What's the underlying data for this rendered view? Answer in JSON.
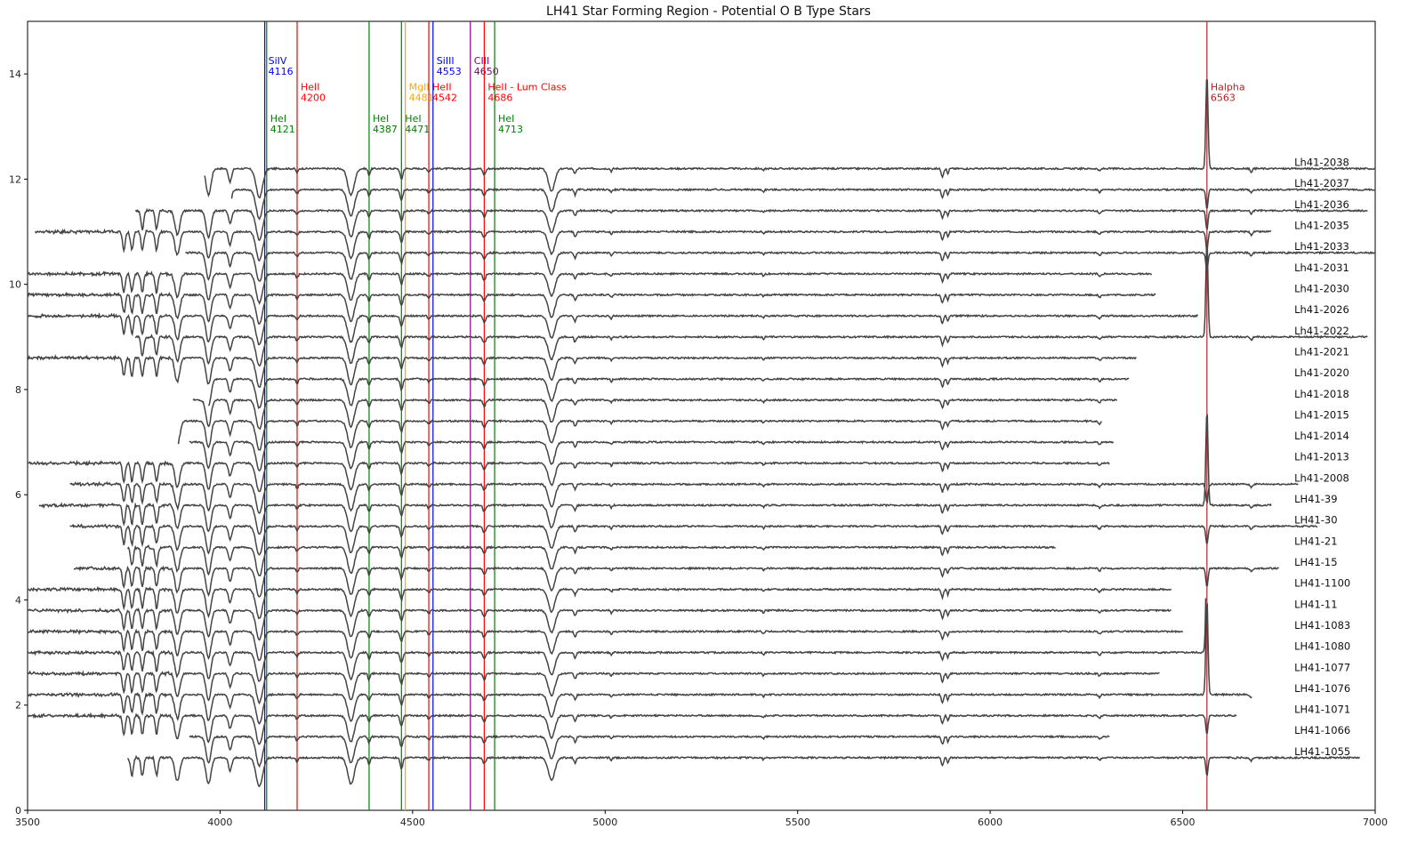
{
  "chart_data": {
    "type": "line",
    "title": "LH41 Star Forming Region - Potential O B Type Stars",
    "xlabel": "",
    "ylabel": "",
    "xlim": [
      3500,
      7000
    ],
    "ylim": [
      0,
      15
    ],
    "xticks": [
      3500,
      4000,
      4500,
      5000,
      5500,
      6000,
      6500,
      7000
    ],
    "yticks": [
      0,
      2,
      4,
      6,
      8,
      10,
      12,
      14
    ],
    "grid": false,
    "line_color": "#444444",
    "reference_lines": [
      {
        "x": 4116,
        "color": "#0000ff",
        "ion": "SiIV",
        "wavelength": "4116",
        "label_y": 14.0
      },
      {
        "x": 4121,
        "color": "#008000",
        "ion": "HeI",
        "wavelength": "4121",
        "label_y": 12.9
      },
      {
        "x": 4200,
        "color": "#ff0000",
        "ion": "HeII",
        "wavelength": "4200",
        "label_y": 13.5
      },
      {
        "x": 4387,
        "color": "#008000",
        "ion": "HeI",
        "wavelength": "4387",
        "label_y": 12.9
      },
      {
        "x": 4471,
        "color": "#008000",
        "ion": "HeI",
        "wavelength": "4471",
        "label_y": 12.9
      },
      {
        "x": 4481,
        "color": "#ffa500",
        "ion": "MgII",
        "wavelength": "4481",
        "label_y": 13.5
      },
      {
        "x": 4542,
        "color": "#ff0000",
        "ion": "HeII",
        "wavelength": "4542",
        "label_y": 13.5
      },
      {
        "x": 4553,
        "color": "#0000ff",
        "ion": "SiIII",
        "wavelength": "4553",
        "label_y": 14.0
      },
      {
        "x": 4650,
        "color": "#800080",
        "ion": "CIII",
        "wavelength": "4650",
        "label_y": 14.0
      },
      {
        "x": 4686,
        "color": "#ff0000",
        "ion": "HeII - Lum Class",
        "wavelength": "4686",
        "label_y": 13.5
      },
      {
        "x": 4713,
        "color": "#008000",
        "ion": "HeI",
        "wavelength": "4713",
        "label_y": 12.9
      },
      {
        "x": 6563,
        "color": "#b22222",
        "ion": "Halpha",
        "wavelength": "6563",
        "label_y": 13.5
      }
    ],
    "series": [
      {
        "name": "Lh41-2038",
        "offset": 12.2,
        "x_start": 3960,
        "x_end": 7000,
        "halpha": "emission"
      },
      {
        "name": "Lh41-2037",
        "offset": 11.8,
        "x_start": 4030,
        "x_end": 7000,
        "halpha": "absorption"
      },
      {
        "name": "Lh41-2036",
        "offset": 11.4,
        "x_start": 3780,
        "x_end": 6980,
        "halpha": "absorption"
      },
      {
        "name": "Lh41-2035",
        "offset": 11.0,
        "x_start": 3520,
        "x_end": 6730,
        "halpha": "absorption"
      },
      {
        "name": "Lh41-2033",
        "offset": 10.6,
        "x_start": 3910,
        "x_end": 7000,
        "halpha": "absorption"
      },
      {
        "name": "Lh41-2031",
        "offset": 10.2,
        "x_start": 3500,
        "x_end": 6420,
        "halpha": "absorption"
      },
      {
        "name": "Lh41-2030",
        "offset": 9.8,
        "x_start": 3500,
        "x_end": 6430,
        "halpha": "absorption"
      },
      {
        "name": "Lh41-2026",
        "offset": 9.4,
        "x_start": 3500,
        "x_end": 6540,
        "halpha": "absorption"
      },
      {
        "name": "Lh41-2022",
        "offset": 9.0,
        "x_start": 3780,
        "x_end": 6980,
        "halpha": "emission"
      },
      {
        "name": "Lh41-2021",
        "offset": 8.6,
        "x_start": 3500,
        "x_end": 6380,
        "halpha": "absorption"
      },
      {
        "name": "Lh41-2020",
        "offset": 8.2,
        "x_start": 3970,
        "x_end": 6360,
        "halpha": "absorption"
      },
      {
        "name": "Lh41-2018",
        "offset": 7.8,
        "x_start": 3930,
        "x_end": 6330,
        "halpha": "absorption"
      },
      {
        "name": "Lh41-2015",
        "offset": 7.4,
        "x_start": 3890,
        "x_end": 6290,
        "halpha": "absorption"
      },
      {
        "name": "Lh41-2014",
        "offset": 7.0,
        "x_start": 3920,
        "x_end": 6320,
        "halpha": "absorption"
      },
      {
        "name": "Lh41-2013",
        "offset": 6.6,
        "x_start": 3500,
        "x_end": 6310,
        "halpha": "absorption"
      },
      {
        "name": "Lh41-2008",
        "offset": 6.2,
        "x_start": 3610,
        "x_end": 6800,
        "halpha": "absorption"
      },
      {
        "name": "LH41-39",
        "offset": 5.8,
        "x_start": 3530,
        "x_end": 6730,
        "halpha": "emission"
      },
      {
        "name": "LH41-30",
        "offset": 5.4,
        "x_start": 3610,
        "x_end": 6850,
        "halpha": "absorption"
      },
      {
        "name": "LH41-21",
        "offset": 5.0,
        "x_start": 3760,
        "x_end": 6170,
        "halpha": "absorption"
      },
      {
        "name": "LH41-15",
        "offset": 4.6,
        "x_start": 3620,
        "x_end": 6750,
        "halpha": "absorption"
      },
      {
        "name": "LH41-1100",
        "offset": 4.2,
        "x_start": 3500,
        "x_end": 6470,
        "halpha": "emission"
      },
      {
        "name": "LH41-11",
        "offset": 3.8,
        "x_start": 3500,
        "x_end": 6470,
        "halpha": "absorption"
      },
      {
        "name": "LH41-1083",
        "offset": 3.4,
        "x_start": 3500,
        "x_end": 6500,
        "halpha": "absorption"
      },
      {
        "name": "LH41-1080",
        "offset": 3.0,
        "x_start": 3500,
        "x_end": 6560,
        "halpha": "emission"
      },
      {
        "name": "LH41-1077",
        "offset": 2.6,
        "x_start": 3500,
        "x_end": 6440,
        "halpha": "absorption"
      },
      {
        "name": "LH41-1076",
        "offset": 2.2,
        "x_start": 3500,
        "x_end": 6680,
        "halpha": "emission"
      },
      {
        "name": "LH41-1071",
        "offset": 1.8,
        "x_start": 3500,
        "x_end": 6640,
        "halpha": "absorption"
      },
      {
        "name": "LH41-1066",
        "offset": 1.4,
        "x_start": 3920,
        "x_end": 6310,
        "halpha": "absorption"
      },
      {
        "name": "LH41-1055",
        "offset": 1.0,
        "x_start": 3760,
        "x_end": 6960,
        "halpha": "absorption"
      }
    ],
    "label_x": 6790
  }
}
